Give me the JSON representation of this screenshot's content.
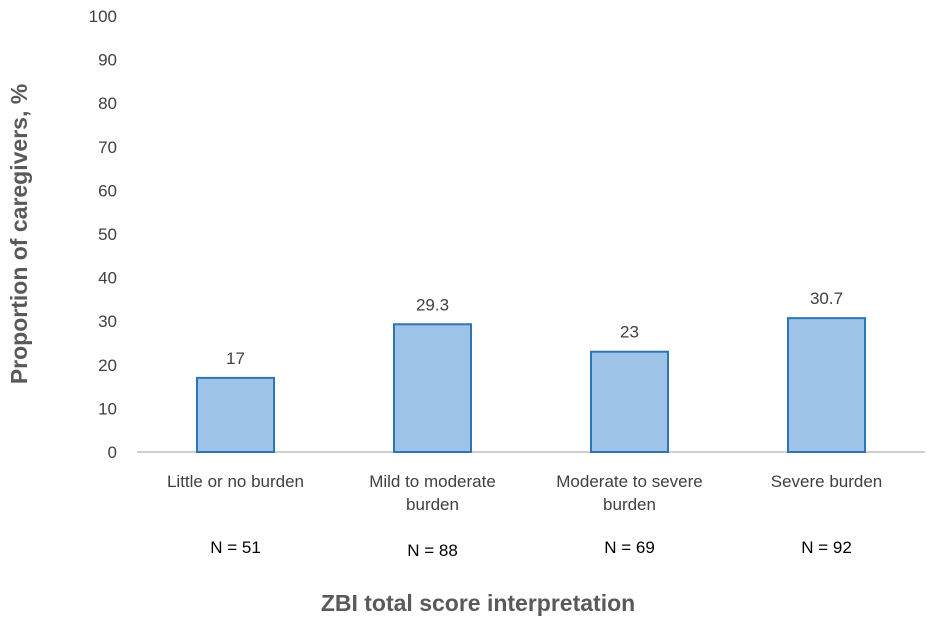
{
  "chart_data": {
    "type": "bar",
    "categories": [
      [
        "Little or no burden"
      ],
      [
        "Mild to moderate",
        "burden"
      ],
      [
        "Moderate to severe",
        "burden"
      ],
      [
        "Severe burden"
      ]
    ],
    "n_labels": [
      "N = 51",
      "N = 88",
      "N = 69",
      "N = 92"
    ],
    "values": [
      17,
      29.3,
      23,
      30.7
    ],
    "value_labels": [
      "17",
      "29.3",
      "23",
      "30.7"
    ],
    "xlabel": "ZBI total score interpretation",
    "ylabel": "Proportion of caregivers, %",
    "ylim": [
      0,
      100
    ],
    "yticks": [
      0,
      10,
      20,
      30,
      40,
      50,
      60,
      70,
      80,
      90,
      100
    ],
    "grid": false,
    "legend": "none",
    "bar_fill": "#9dc3e6",
    "bar_stroke": "#2e75b6",
    "axis_color": "#bfbfbf"
  }
}
